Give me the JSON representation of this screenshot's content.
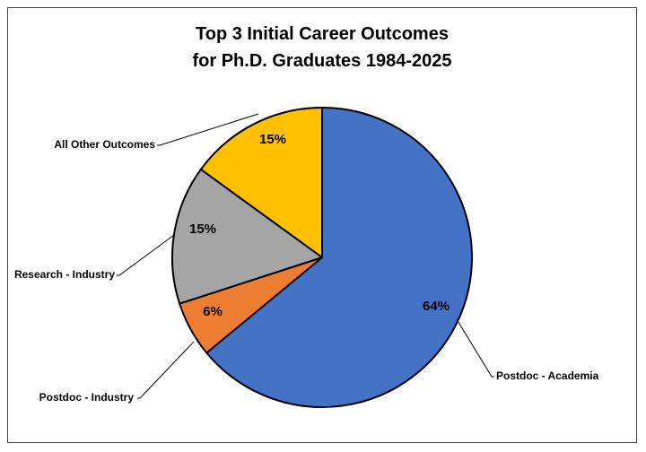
{
  "chart_data": {
    "type": "pie",
    "title_lines": [
      "Top 3 Initial Career Outcomes",
      "for Ph.D. Graduates 1984-2025"
    ],
    "slices": [
      {
        "label": "Postdoc - Academia",
        "value": 64,
        "display": "64%",
        "color": "#4472C4"
      },
      {
        "label": "Postdoc - Industry",
        "value": 6,
        "display": "6%",
        "color": "#ED7D31"
      },
      {
        "label": "Research - Industry",
        "value": 15,
        "display": "15%",
        "color": "#A5A5A5"
      },
      {
        "label": "All Other Outcomes",
        "value": 15,
        "display": "15%",
        "color": "#FFC000"
      }
    ],
    "start_angle": "12 o'clock",
    "direction": "clockwise",
    "legend": "none",
    "labels": "outside with leader lines"
  }
}
